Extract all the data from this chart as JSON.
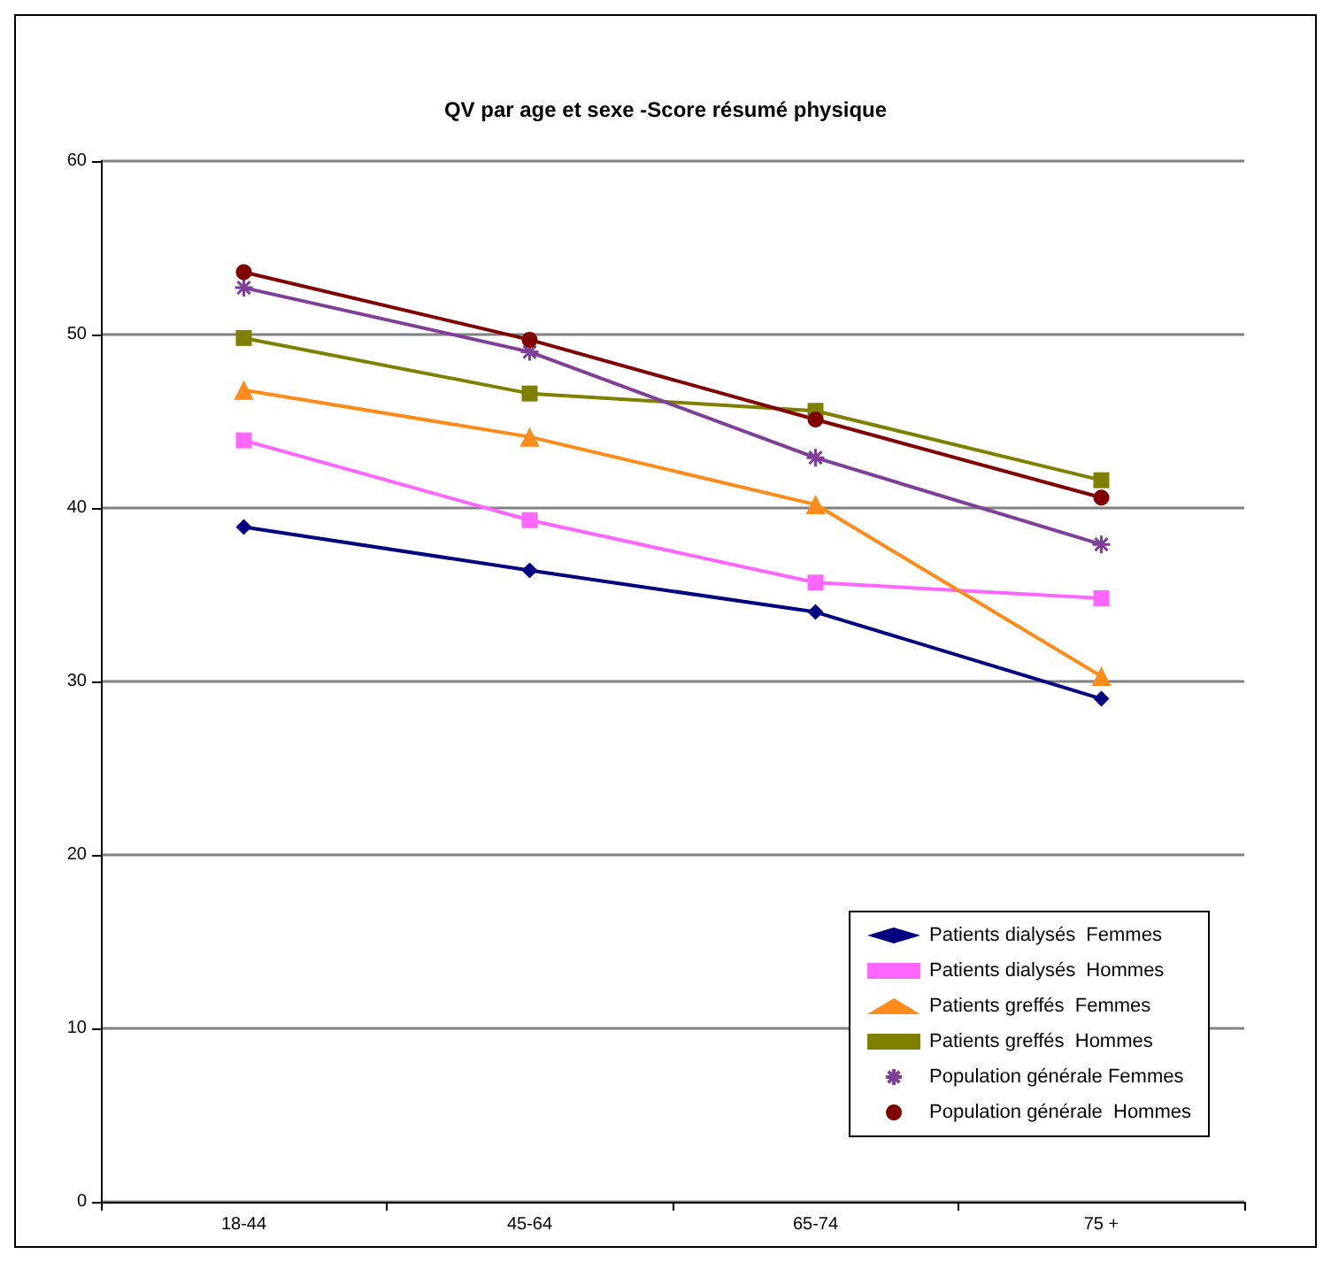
{
  "chart_data": {
    "type": "line",
    "title": "QV par age et sexe -Score résumé physique",
    "categories": [
      "18-44",
      "45-64",
      "65-74",
      "75 +"
    ],
    "ylim": [
      0,
      60
    ],
    "yticks": [
      0,
      10,
      20,
      30,
      40,
      50,
      60
    ],
    "grid": "y",
    "legend": "bottom right",
    "series": [
      {
        "name": "Patients dialysés  Femmes",
        "color": "#000080",
        "marker": "diamond",
        "values": [
          38.9,
          36.4,
          34.0,
          29.0
        ]
      },
      {
        "name": "Patients dialysés  Hommes",
        "color": "#ff66ff",
        "marker": "square",
        "values": [
          43.9,
          39.3,
          35.7,
          34.8
        ]
      },
      {
        "name": "Patients greffés  Femmes",
        "color": "#ff8c1a",
        "marker": "triangle",
        "values": [
          46.8,
          44.1,
          40.2,
          30.3
        ]
      },
      {
        "name": "Patients greffés  Hommes",
        "color": "#808000",
        "marker": "square",
        "values": [
          49.8,
          46.6,
          45.6,
          41.6
        ]
      },
      {
        "name": "Population générale Femmes",
        "color": "#7f3f98",
        "marker": "cross",
        "values": [
          52.7,
          49.0,
          42.9,
          37.9
        ]
      },
      {
        "name": "Population générale  Hommes",
        "color": "#800000",
        "marker": "circle",
        "values": [
          53.6,
          49.7,
          45.1,
          40.6
        ]
      }
    ]
  }
}
